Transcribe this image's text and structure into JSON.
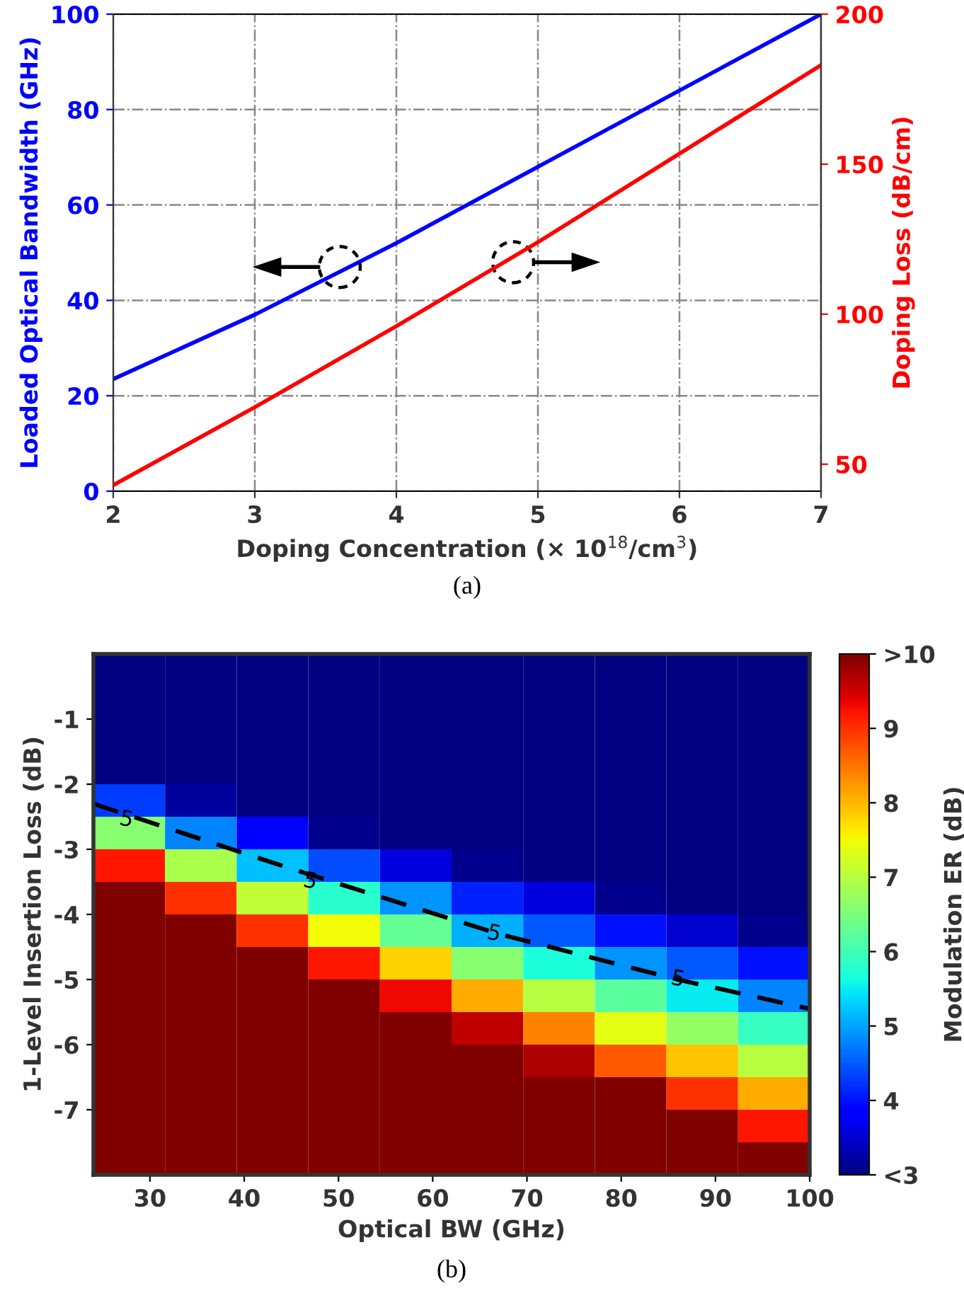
{
  "chart_data": [
    {
      "type": "line",
      "xlabel": "Doping Concentration (× 10$^{18}$/cm$^{3}$)",
      "ylabel": "Loaded Optical Bandwidth (GHz)",
      "y2label": "Doping Loss (dB/cm)",
      "x": [
        2,
        3,
        4,
        5,
        6,
        7
      ],
      "series": [
        {
          "color": "#0000ff",
          "values": [
            23.5,
            37,
            52,
            68,
            84,
            100
          ]
        },
        {
          "color": "#ff0000",
          "values": [
            43,
            69,
            96,
            124,
            153.5,
            183
          ],
          "axis": "y2"
        }
      ],
      "xlim": [
        2,
        7
      ],
      "xticks": [
        2,
        3,
        4,
        5,
        6,
        7
      ],
      "ylim": [
        0,
        100
      ],
      "yticks": [
        0,
        20,
        40,
        60,
        80,
        100
      ],
      "y2lim": [
        41,
        200
      ],
      "y2ticks": [
        50,
        100,
        150,
        200
      ],
      "grid": true,
      "line_style": "solid",
      "annotations": [
        "(a)"
      ]
    },
    {
      "type": "heatmap",
      "xlabel": "Optical BW (GHz)",
      "ylabel": "1-Level Insertion Loss (dB)",
      "clabel": "Modulation ER (dB)",
      "x": [
        27.8,
        35.4,
        43,
        50.6,
        58.2,
        65.8,
        73.4,
        81,
        88.6,
        96.2
      ],
      "y": [
        -0.25,
        -0.75,
        -1.25,
        -1.75,
        -2.25,
        -2.75,
        -3.25,
        -3.75,
        -4.25,
        -4.75,
        -5.25,
        -5.75,
        -6.25,
        -6.75,
        -7.25,
        -7.75
      ],
      "cells": [
        [
          3,
          3,
          3,
          3,
          3,
          3,
          3,
          3,
          3,
          3
        ],
        [
          3,
          3,
          3,
          3,
          3,
          3,
          3,
          3,
          3,
          3
        ],
        [
          3,
          3,
          3,
          3,
          3,
          3,
          3,
          3,
          3,
          3
        ],
        [
          3,
          3,
          3,
          3,
          3,
          3,
          3,
          3,
          3,
          3
        ],
        [
          4.3,
          3.2,
          3,
          3,
          3,
          3,
          3,
          3,
          3,
          3
        ],
        [
          6.6,
          4.8,
          3.8,
          3.1,
          3,
          3,
          3,
          3,
          3,
          3
        ],
        [
          9.2,
          6.9,
          5.2,
          4.4,
          3.6,
          3.1,
          3,
          3,
          3,
          3
        ],
        [
          10,
          9.0,
          7.1,
          5.8,
          4.9,
          4.1,
          3.6,
          3.1,
          3,
          3
        ],
        [
          10,
          10,
          9.0,
          7.5,
          6.3,
          5.1,
          4.5,
          4.0,
          3.5,
          3.1
        ],
        [
          10,
          10,
          10,
          9.2,
          7.8,
          6.6,
          5.7,
          4.9,
          4.5,
          4.0
        ],
        [
          10,
          10,
          10,
          10,
          9.3,
          8.1,
          7.0,
          6.2,
          5.5,
          4.8
        ],
        [
          10,
          10,
          10,
          10,
          10,
          9.6,
          8.4,
          7.4,
          6.7,
          5.9
        ],
        [
          10,
          10,
          10,
          10,
          10,
          10,
          9.7,
          8.7,
          7.9,
          7.0
        ],
        [
          10,
          10,
          10,
          10,
          10,
          10,
          10,
          10,
          9.0,
          8.1
        ],
        [
          10,
          10,
          10,
          10,
          10,
          10,
          10,
          10,
          10,
          9.2
        ],
        [
          10,
          10,
          10,
          10,
          10,
          10,
          10,
          10,
          10,
          10
        ]
      ],
      "series": [
        {
          "type": "line",
          "color": "#000000",
          "line_style": "dashed",
          "x": [
            24,
            45,
            67,
            86,
            100
          ],
          "values": [
            -2.3,
            -3.3,
            -4.3,
            -5.0,
            -5.45
          ]
        }
      ],
      "clim": [
        3,
        10
      ],
      "cticks": [
        {
          "value": 3,
          "label": "<3"
        },
        4,
        5,
        6,
        7,
        8,
        9,
        {
          "value": 10,
          "label": ">10"
        }
      ],
      "xlim": [
        24,
        100
      ],
      "xticks": [
        30,
        40,
        50,
        60,
        70,
        80,
        90,
        100
      ],
      "ylim": [
        -8,
        0
      ],
      "yticks": [
        -7,
        -6,
        -5,
        -4,
        -3,
        -2,
        -1
      ],
      "annotations": [
        {
          "text": "5",
          "x": 27.5,
          "y": -2.55
        },
        {
          "text": "5",
          "x": 47,
          "y": -3.5
        },
        {
          "text": "5",
          "x": 66.5,
          "y": -4.3
        },
        {
          "text": "5",
          "x": 86,
          "y": -5.0
        },
        "(b)"
      ]
    }
  ]
}
